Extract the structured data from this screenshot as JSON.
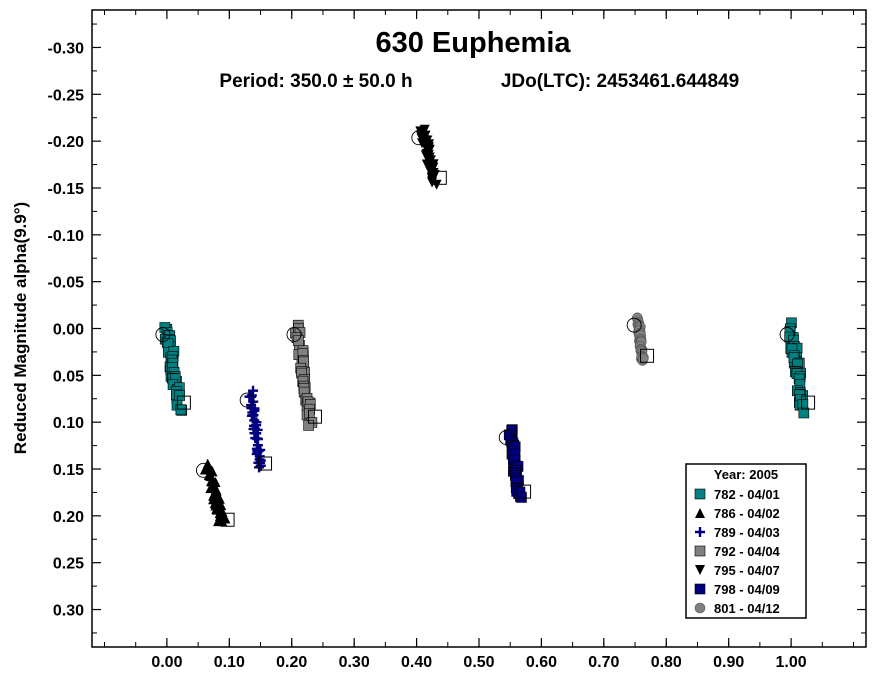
{
  "chart_data": {
    "type": "scatter",
    "title": "630 Euphemia",
    "subtitle_period": "Period: 350.0 ± 50.0 h",
    "subtitle_epoch": "JDo(LTC): 2453461.644849",
    "xlabel": "",
    "ylabel": "Reduced Magnitude alpha(9.9°)",
    "xlim": [
      -0.12,
      1.12
    ],
    "ylim": [
      0.34,
      -0.34
    ],
    "y_inverted": true,
    "x_ticks": [
      "0.00",
      "0.10",
      "0.20",
      "0.30",
      "0.40",
      "0.50",
      "0.60",
      "0.70",
      "0.80",
      "0.90",
      "1.00"
    ],
    "y_ticks": [
      "-0.30",
      "-0.25",
      "-0.20",
      "-0.15",
      "-0.10",
      "-0.05",
      "0.00",
      "0.05",
      "0.10",
      "0.15",
      "0.20",
      "0.25",
      "0.30"
    ],
    "grid": false,
    "legend_position": "bottom-right",
    "legend_title": "Year: 2005",
    "series": [
      {
        "name": "782 - 04/01",
        "marker": "square",
        "color": "#008080",
        "x_range": [
          0.0,
          0.02
        ],
        "y_range": [
          0.0,
          0.085
        ],
        "x_repeat_range": [
          1.0,
          1.02
        ]
      },
      {
        "name": "786 - 04/02",
        "marker": "triangle-up",
        "color": "#000000",
        "x_range": [
          0.065,
          0.09
        ],
        "y_range": [
          0.145,
          0.21
        ]
      },
      {
        "name": "789 - 04/03",
        "marker": "plus",
        "color": "#000080",
        "x_range": [
          0.135,
          0.15
        ],
        "y_range": [
          0.07,
          0.15
        ]
      },
      {
        "name": "792 - 04/04",
        "marker": "square",
        "color": "#808080",
        "x_range": [
          0.21,
          0.23
        ],
        "y_range": [
          0.0,
          0.1
        ]
      },
      {
        "name": "795 - 04/07",
        "marker": "triangle-down",
        "color": "#000000",
        "x_range": [
          0.41,
          0.43
        ],
        "y_range": [
          -0.21,
          -0.155
        ]
      },
      {
        "name": "798 - 04/09",
        "marker": "square",
        "color": "#000080",
        "x_range": [
          0.55,
          0.565
        ],
        "y_range": [
          0.11,
          0.18
        ]
      },
      {
        "name": "801 - 04/12",
        "marker": "circle",
        "color": "#808080",
        "x_range": [
          0.755,
          0.762
        ],
        "y_range": [
          -0.01,
          0.035
        ]
      }
    ]
  }
}
